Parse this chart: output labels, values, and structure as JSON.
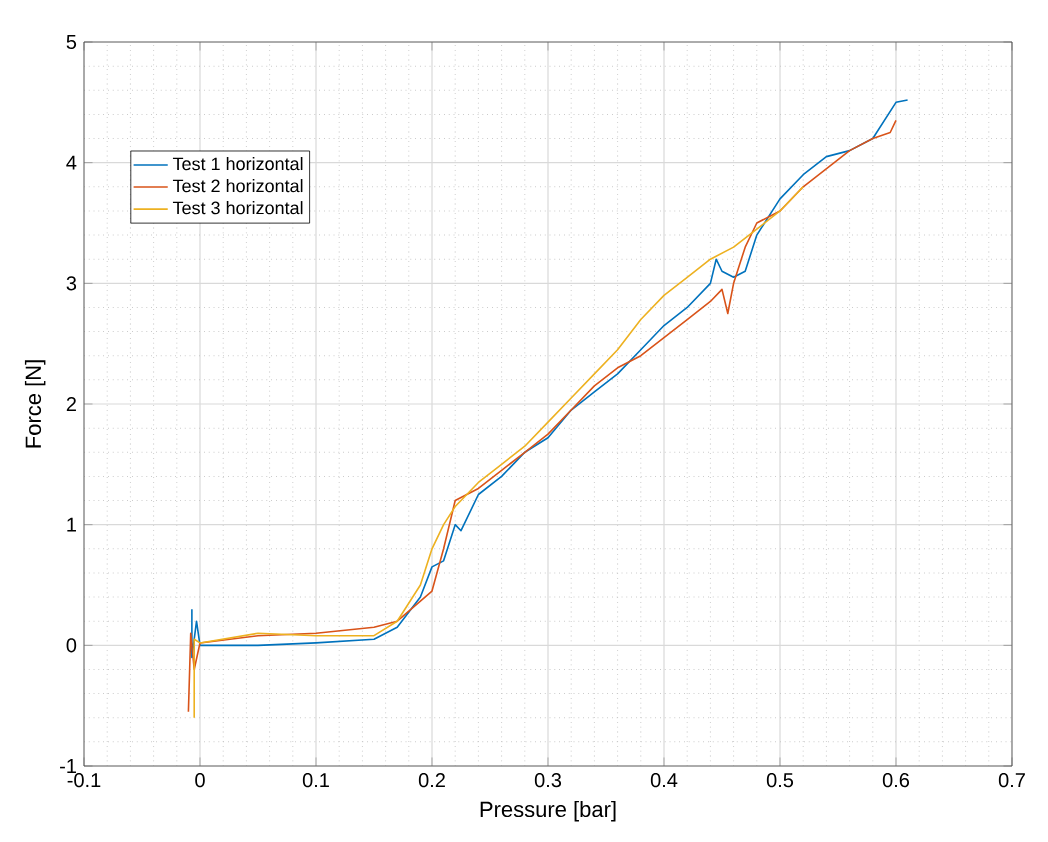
{
  "chart_data": {
    "type": "line",
    "xlabel": "Pressure [bar]",
    "ylabel": "Force [N]",
    "xlim": [
      -0.1,
      0.7
    ],
    "ylim": [
      -1,
      5
    ],
    "xticks": [
      -0.1,
      0,
      0.1,
      0.2,
      0.3,
      0.4,
      0.5,
      0.6,
      0.7
    ],
    "yticks": [
      -1,
      0,
      1,
      2,
      3,
      4,
      5
    ],
    "grid": true,
    "legend": "top left",
    "marker": "none",
    "line_style": "solid",
    "series": [
      {
        "name": "Test 1 horizontal",
        "color": "#0072bd",
        "x": [
          -0.007,
          -0.007,
          -0.003,
          0,
          0.05,
          0.1,
          0.15,
          0.17,
          0.19,
          0.2,
          0.21,
          0.22,
          0.225,
          0.24,
          0.26,
          0.28,
          0.3,
          0.32,
          0.34,
          0.36,
          0.38,
          0.4,
          0.42,
          0.44,
          0.445,
          0.45,
          0.46,
          0.47,
          0.48,
          0.5,
          0.52,
          0.54,
          0.56,
          0.58,
          0.6,
          0.61
        ],
        "values": [
          0.3,
          -0.1,
          0.2,
          0.0,
          0.0,
          0.02,
          0.05,
          0.15,
          0.4,
          0.65,
          0.7,
          1.0,
          0.95,
          1.25,
          1.4,
          1.6,
          1.72,
          1.95,
          2.1,
          2.25,
          2.45,
          2.65,
          2.8,
          3.0,
          3.2,
          3.1,
          3.05,
          3.1,
          3.4,
          3.7,
          3.9,
          4.05,
          4.1,
          4.2,
          4.5,
          4.52
        ]
      },
      {
        "name": "Test 2 horizontal",
        "color": "#d95319",
        "x": [
          -0.01,
          -0.008,
          -0.005,
          0,
          0.05,
          0.1,
          0.15,
          0.17,
          0.2,
          0.21,
          0.22,
          0.24,
          0.26,
          0.28,
          0.3,
          0.32,
          0.34,
          0.36,
          0.38,
          0.4,
          0.42,
          0.44,
          0.45,
          0.455,
          0.46,
          0.47,
          0.48,
          0.5,
          0.52,
          0.54,
          0.56,
          0.58,
          0.595,
          0.6
        ],
        "values": [
          -0.55,
          0.1,
          -0.2,
          0.02,
          0.08,
          0.1,
          0.15,
          0.2,
          0.45,
          0.8,
          1.2,
          1.3,
          1.45,
          1.6,
          1.75,
          1.95,
          2.15,
          2.3,
          2.4,
          2.55,
          2.7,
          2.85,
          2.95,
          2.75,
          3.0,
          3.3,
          3.5,
          3.6,
          3.8,
          3.95,
          4.1,
          4.2,
          4.25,
          4.35
        ]
      },
      {
        "name": "Test 3 horizontal",
        "color": "#edb120",
        "x": [
          -0.005,
          -0.005,
          0,
          0.05,
          0.1,
          0.15,
          0.17,
          0.19,
          0.2,
          0.21,
          0.22,
          0.24,
          0.26,
          0.28,
          0.3,
          0.32,
          0.34,
          0.36,
          0.38,
          0.4,
          0.42,
          0.44,
          0.46,
          0.48,
          0.5,
          0.52
        ],
        "values": [
          -0.6,
          0.05,
          0.02,
          0.1,
          0.08,
          0.08,
          0.2,
          0.5,
          0.8,
          1.0,
          1.15,
          1.35,
          1.5,
          1.65,
          1.85,
          2.05,
          2.25,
          2.45,
          2.7,
          2.9,
          3.05,
          3.2,
          3.3,
          3.45,
          3.6,
          3.8
        ]
      }
    ]
  }
}
